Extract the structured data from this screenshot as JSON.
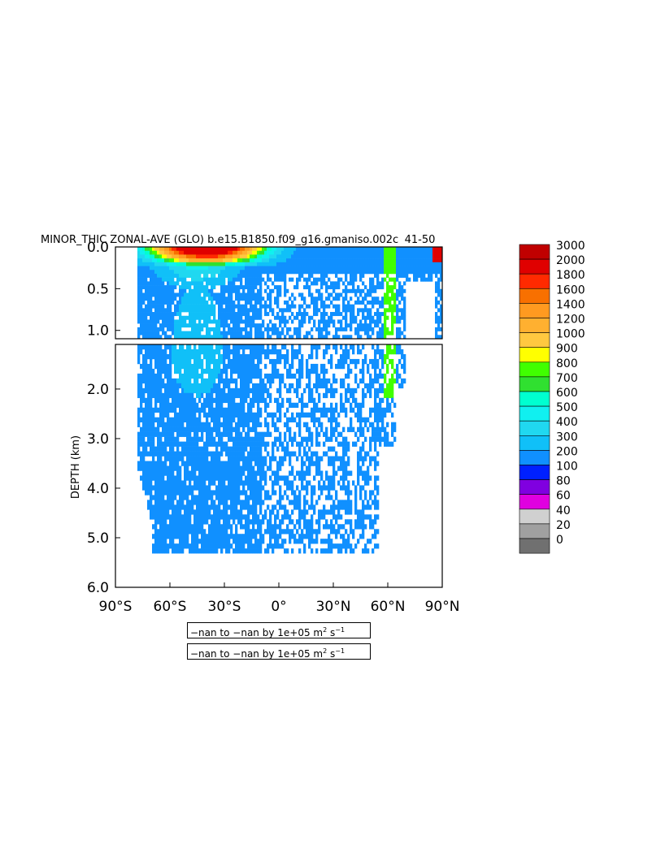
{
  "chart_data": {
    "type": "heatmap",
    "title": "MINOR_THIC ZONAL-AVE (GLO) b.e15.B1850.f09_g16.gmaniso.002c  41-50 ",
    "xlabel": "",
    "ylabel": "DEPTH (km)",
    "x_ticks": [
      "90°S",
      "60°S",
      "30°S",
      "0°",
      "30°N",
      "60°N",
      "90°N"
    ],
    "y_ticks_upper": [
      "0.0",
      "0.5",
      "1.0"
    ],
    "y_ticks_lower": [
      "2.0",
      "3.0",
      "4.0",
      "5.0",
      "6.0"
    ],
    "xlim": [
      -90,
      90
    ],
    "ylim_upper": [
      1.1,
      0.0
    ],
    "ylim_lower": [
      6.0,
      1.1
    ],
    "colorbar": {
      "levels": [
        "3000",
        "2000",
        "1800",
        "1600",
        "1400",
        "1200",
        "1000",
        "900",
        "800",
        "700",
        "600",
        "500",
        "400",
        "300",
        "200",
        "100",
        "80",
        "60",
        "40",
        "20",
        "0"
      ],
      "colors": [
        "#c00000",
        "#e00000",
        "#ff2a00",
        "#f87000",
        "#ff9a20",
        "#ffb030",
        "#ffc840",
        "#ffff00",
        "#40ff00",
        "#30e030",
        "#00ffd0",
        "#10f0f0",
        "#20d8f0",
        "#10c0f8",
        "#1090ff",
        "#0020ff",
        "#8000e0",
        "#e000e0",
        "#d0d0d0",
        "#a0a0a0",
        "#707070"
      ]
    },
    "notes": [
      "−nan to −nan by 1e+05 m",
      "2",
      " s",
      "−1"
    ]
  }
}
